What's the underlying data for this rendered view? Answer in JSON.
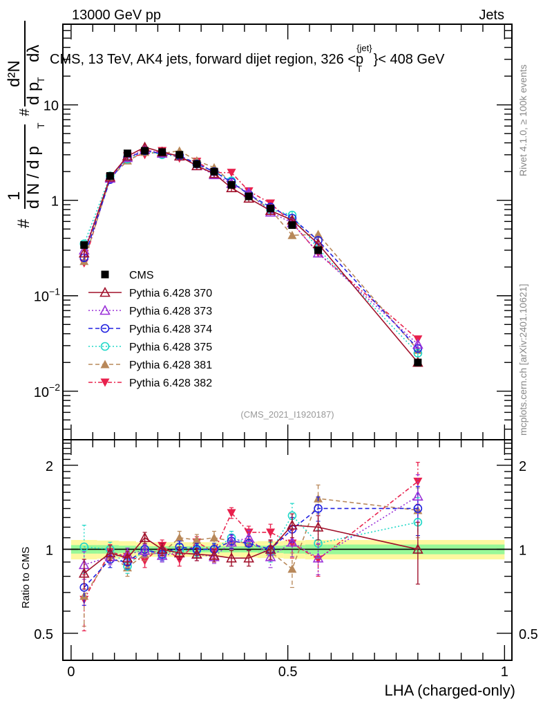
{
  "chart_data": [
    {
      "type": "line",
      "panel": "main",
      "header_left": "13000 GeV pp",
      "header_right": "Jets",
      "title": "CMS, 13 TeV, AK4 jets, forward dijet region, 326 <p_T^{jet}< 408 GeV",
      "title_parts": {
        "pre": "CMS, 13 TeV, AK4 jets, forward dijet region, 326 <p",
        "sup": "{jet}",
        "sub": "T",
        "post": "}< 408 GeV"
      },
      "ylabel_parts": {
        "num_left": "1",
        "den_left": "d N / d p",
        "den_left_sub": "T",
        "hash_left": "#",
        "num_right": "d²N",
        "den_right": "d p",
        "den_right_sub": "T",
        "den_right_post": "dλ",
        "hash_right": "#"
      },
      "yscale": "log",
      "ylim": [
        0.0031,
        70
      ],
      "xlim": [
        -0.019,
        1.017
      ],
      "yticks": [
        {
          "v": 0.01,
          "base": "10",
          "exp": "−2"
        },
        {
          "v": 0.1,
          "base": "10",
          "exp": "−1"
        },
        {
          "v": 1,
          "label": "1"
        },
        {
          "v": 10,
          "label": "10"
        }
      ],
      "watermark": "(CMS_2021_I1920187)",
      "side_label_top": "Rivet 4.1.0, ≥ 100k events",
      "side_label_bottom": "mcplots.cern.ch [arXiv:2401.10621]",
      "legend_position": "center-left",
      "x": [
        0.03,
        0.09,
        0.13,
        0.17,
        0.21,
        0.25,
        0.29,
        0.33,
        0.37,
        0.41,
        0.46,
        0.51,
        0.57,
        0.8
      ],
      "series": [
        {
          "name": "CMS",
          "color": "#000000",
          "marker": "square-filled",
          "dash": "none",
          "values": [
            0.34,
            1.8,
            3.1,
            3.3,
            3.2,
            3.0,
            2.4,
            2.0,
            1.45,
            1.1,
            0.82,
            0.55,
            0.3,
            0.02
          ]
        },
        {
          "name": "Pythia 6.428 370",
          "color": "#a0102a",
          "marker": "triangle-up-open",
          "dash": "solid",
          "values": [
            0.28,
            1.75,
            2.9,
            3.6,
            3.2,
            2.9,
            2.3,
            1.9,
            1.35,
            1.05,
            0.78,
            0.62,
            0.35,
            0.02
          ]
        },
        {
          "name": "Pythia 6.428 373",
          "color": "#9a30d8",
          "marker": "triangle-up-open",
          "dash": "dotted",
          "values": [
            0.3,
            1.7,
            2.8,
            3.4,
            3.1,
            2.9,
            2.3,
            1.85,
            1.5,
            1.2,
            0.75,
            0.58,
            0.28,
            0.031
          ]
        },
        {
          "name": "Pythia 6.428 374",
          "color": "#2020e0",
          "marker": "circle-open",
          "dash": "dashed",
          "values": [
            0.25,
            1.65,
            2.8,
            3.3,
            3.1,
            2.95,
            2.4,
            2.0,
            1.55,
            1.15,
            0.85,
            0.65,
            0.38,
            0.028
          ]
        },
        {
          "name": "Pythia 6.428 375",
          "color": "#20d8c8",
          "marker": "circle-open",
          "dash": "dotted",
          "values": [
            0.35,
            1.8,
            2.7,
            3.3,
            3.0,
            2.9,
            2.4,
            2.0,
            1.6,
            1.15,
            0.8,
            0.7,
            0.31,
            0.025
          ]
        },
        {
          "name": "Pythia 6.428 381",
          "color": "#b8885a",
          "marker": "triangle-up-filled",
          "dash": "dashed",
          "values": [
            0.23,
            1.7,
            2.6,
            3.2,
            3.1,
            3.3,
            2.6,
            2.2,
            1.55,
            1.15,
            0.8,
            0.43,
            0.44,
            0.027
          ]
        },
        {
          "name": "Pythia 6.428 382",
          "color": "#e8204c",
          "marker": "triangle-down-filled",
          "dash": "dashdot",
          "values": [
            0.22,
            1.75,
            2.9,
            3.0,
            3.3,
            2.75,
            2.55,
            1.95,
            1.95,
            1.25,
            0.93,
            0.58,
            0.28,
            0.035
          ]
        }
      ]
    },
    {
      "type": "line",
      "panel": "ratio",
      "ylabel": "Ratio to CMS",
      "xlabel": "LHA (charged-only)",
      "yscale": "log",
      "ylim": [
        0.4,
        2.47
      ],
      "xlim": [
        -0.019,
        1.017
      ],
      "yticks": [
        0.5,
        1,
        2
      ],
      "xticks": [
        0,
        0.5,
        1
      ],
      "x": [
        0.03,
        0.09,
        0.13,
        0.17,
        0.21,
        0.25,
        0.29,
        0.33,
        0.37,
        0.41,
        0.46,
        0.51,
        0.57,
        0.8
      ],
      "band_edges": [
        0.0,
        0.06,
        0.11,
        0.15,
        0.19,
        0.23,
        0.27,
        0.31,
        0.35,
        0.39,
        0.43,
        0.49,
        0.54,
        0.59,
        1.0
      ],
      "band_inner": [
        0.035,
        0.035,
        0.03,
        0.025,
        0.025,
        0.025,
        0.025,
        0.025,
        0.025,
        0.025,
        0.03,
        0.035,
        0.04,
        0.04
      ],
      "band_outer": [
        0.08,
        0.075,
        0.07,
        0.06,
        0.06,
        0.06,
        0.06,
        0.06,
        0.06,
        0.065,
        0.07,
        0.075,
        0.08,
        0.08
      ],
      "series": [
        {
          "name": "Pythia 6.428 370",
          "color": "#a0102a",
          "marker": "triangle-up-open",
          "dash": "solid",
          "values": [
            0.82,
            0.97,
            0.93,
            1.1,
            1.0,
            0.97,
            0.96,
            0.95,
            0.93,
            0.93,
            1.0,
            1.22,
            1.2,
            1.0
          ],
          "errors": [
            0.1,
            0.06,
            0.05,
            0.05,
            0.05,
            0.05,
            0.05,
            0.05,
            0.06,
            0.06,
            0.08,
            0.12,
            0.12,
            0.25
          ]
        },
        {
          "name": "Pythia 6.428 373",
          "color": "#9a30d8",
          "marker": "triangle-up-open",
          "dash": "dotted",
          "values": [
            0.88,
            0.94,
            0.96,
            0.99,
            0.95,
            0.97,
            0.96,
            0.94,
            1.06,
            1.1,
            0.94,
            1.06,
            0.93,
            1.55
          ],
          "errors": [
            0.1,
            0.06,
            0.05,
            0.05,
            0.05,
            0.05,
            0.05,
            0.05,
            0.06,
            0.07,
            0.08,
            0.12,
            0.12,
            0.3
          ]
        },
        {
          "name": "Pythia 6.428 374",
          "color": "#2020e0",
          "marker": "circle-open",
          "dash": "dashed",
          "values": [
            0.73,
            0.92,
            0.9,
            1.0,
            0.96,
            1.02,
            1.0,
            1.0,
            1.07,
            1.05,
            1.0,
            1.18,
            1.4,
            1.4
          ],
          "errors": [
            0.1,
            0.06,
            0.05,
            0.05,
            0.05,
            0.05,
            0.05,
            0.05,
            0.06,
            0.06,
            0.08,
            0.12,
            0.14,
            0.28
          ]
        },
        {
          "name": "Pythia 6.428 375",
          "color": "#20d8c8",
          "marker": "circle-open",
          "dash": "dotted",
          "values": [
            1.02,
            1.0,
            0.87,
            1.0,
            0.95,
            0.99,
            0.99,
            1.0,
            1.1,
            1.05,
            0.98,
            1.32,
            1.05,
            1.25
          ],
          "errors": [
            0.2,
            0.06,
            0.05,
            0.05,
            0.05,
            0.05,
            0.05,
            0.05,
            0.06,
            0.06,
            0.08,
            0.14,
            0.12,
            0.28
          ]
        },
        {
          "name": "Pythia 6.428 381",
          "color": "#b8885a",
          "marker": "triangle-up-filled",
          "dash": "dashed",
          "values": [
            0.68,
            0.95,
            0.86,
            0.96,
            0.97,
            1.1,
            1.08,
            1.1,
            1.07,
            1.05,
            0.98,
            0.85,
            1.52,
            1.38
          ],
          "errors": [
            0.15,
            0.06,
            0.06,
            0.05,
            0.05,
            0.06,
            0.05,
            0.06,
            0.06,
            0.06,
            0.08,
            0.12,
            0.18,
            0.28
          ]
        },
        {
          "name": "Pythia 6.428 382",
          "color": "#e8204c",
          "marker": "triangle-down-filled",
          "dash": "dashdot",
          "values": [
            0.66,
            0.98,
            0.94,
            0.91,
            1.03,
            0.92,
            1.06,
            0.98,
            1.35,
            1.15,
            1.15,
            1.05,
            0.92,
            1.75
          ],
          "errors": [
            0.15,
            0.06,
            0.05,
            0.05,
            0.05,
            0.05,
            0.05,
            0.05,
            0.06,
            0.06,
            0.08,
            0.12,
            0.12,
            0.3
          ]
        }
      ]
    }
  ]
}
